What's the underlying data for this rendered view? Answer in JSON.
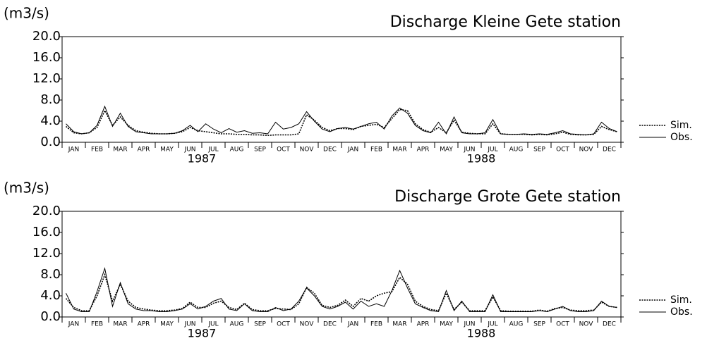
{
  "chart_data": [
    {
      "type": "line",
      "title": "Discharge Kleine Gete station",
      "ylabel": "(m3/s)",
      "categories": [
        null,
        "JAN",
        null,
        null,
        "FEB",
        null,
        null,
        "MAR",
        null,
        null,
        "APR",
        null,
        null,
        "MAY",
        null,
        null,
        "JUN",
        null,
        null,
        "JUL",
        null,
        null,
        "AUG",
        null,
        null,
        "SEP",
        null,
        null,
        "OCT",
        null,
        null,
        "NOV",
        null,
        null,
        "DEC",
        null,
        null,
        "JAN",
        null,
        null,
        "FEB",
        null,
        null,
        "MAR",
        null,
        null,
        "APR",
        null,
        null,
        "MAY",
        null,
        null,
        "JUN",
        null,
        null,
        "JUL",
        null,
        null,
        "AUG",
        null,
        null,
        "SEP",
        null,
        null,
        "OCT",
        null,
        null,
        "NOV",
        null,
        null,
        "DEC",
        null
      ],
      "years": [
        "1987",
        "1988"
      ],
      "ylim": [
        0,
        20
      ],
      "yticks": [
        {
          "value": 0,
          "label": "0.0"
        },
        {
          "value": 4,
          "label": "4.0"
        },
        {
          "value": 8,
          "label": "8.0"
        },
        {
          "value": 12,
          "label": "12.0"
        },
        {
          "value": 16,
          "label": "16.0"
        },
        {
          "value": 20,
          "label": "20.0"
        }
      ],
      "series": [
        {
          "name": "Sim.",
          "color": "#000000",
          "dash": "dotted",
          "values": [
            3.0,
            1.8,
            1.6,
            1.8,
            2.8,
            6.0,
            3.2,
            4.8,
            3.2,
            2.2,
            1.9,
            1.7,
            1.6,
            1.6,
            1.7,
            2.0,
            2.8,
            2.2,
            2.0,
            1.8,
            1.6,
            1.6,
            1.5,
            1.5,
            1.4,
            1.4,
            1.3,
            1.4,
            1.4,
            1.4,
            1.6,
            5.2,
            4.2,
            2.8,
            2.2,
            2.6,
            2.6,
            2.4,
            3.0,
            3.2,
            3.4,
            2.8,
            4.5,
            6.2,
            6.0,
            3.5,
            2.4,
            1.9,
            2.8,
            1.8,
            4.2,
            1.9,
            1.7,
            1.6,
            1.6,
            3.5,
            1.6,
            1.5,
            1.5,
            1.5,
            1.4,
            1.5,
            1.4,
            1.6,
            1.9,
            1.5,
            1.4,
            1.4,
            1.5,
            3.0,
            2.4,
            2.0
          ]
        },
        {
          "name": "Obs.",
          "color": "#000000",
          "dash": "solid",
          "values": [
            3.5,
            2.0,
            1.6,
            1.8,
            3.2,
            6.8,
            3.0,
            5.5,
            3.0,
            2.0,
            1.8,
            1.6,
            1.6,
            1.6,
            1.7,
            2.2,
            3.2,
            2.0,
            3.5,
            2.5,
            1.8,
            2.6,
            1.9,
            2.2,
            1.7,
            1.8,
            1.6,
            3.8,
            2.5,
            2.8,
            3.5,
            5.8,
            4.0,
            2.5,
            2.0,
            2.6,
            2.8,
            2.5,
            3.0,
            3.5,
            3.8,
            2.5,
            5.0,
            6.5,
            5.5,
            3.2,
            2.2,
            1.8,
            3.8,
            1.6,
            4.8,
            1.8,
            1.6,
            1.6,
            1.8,
            4.3,
            1.6,
            1.5,
            1.5,
            1.6,
            1.5,
            1.6,
            1.5,
            1.8,
            2.2,
            1.6,
            1.5,
            1.4,
            1.6,
            3.8,
            2.6,
            2.0
          ]
        }
      ]
    },
    {
      "type": "line",
      "title": "Discharge Grote Gete station",
      "ylabel": "(m3/s)",
      "categories": [
        null,
        "JAN",
        null,
        null,
        "FEB",
        null,
        null,
        "MAR",
        null,
        null,
        "APR",
        null,
        null,
        "MAY",
        null,
        null,
        "JUN",
        null,
        null,
        "JUL",
        null,
        null,
        "AUG",
        null,
        null,
        "SEP",
        null,
        null,
        "OCT",
        null,
        null,
        "NOV",
        null,
        null,
        "DEC",
        null,
        null,
        "JAN",
        null,
        null,
        "FEB",
        null,
        null,
        "MAR",
        null,
        null,
        "APR",
        null,
        null,
        "MAY",
        null,
        null,
        "JUN",
        null,
        null,
        "JUL",
        null,
        null,
        "AUG",
        null,
        null,
        "SEP",
        null,
        null,
        "OCT",
        null,
        null,
        "NOV",
        null,
        null,
        "DEC",
        null
      ],
      "years": [
        "1987",
        "1988"
      ],
      "ylim": [
        0,
        20
      ],
      "yticks": [
        {
          "value": 0,
          "label": "0.0"
        },
        {
          "value": 4,
          "label": "4.0"
        },
        {
          "value": 8,
          "label": "8.0"
        },
        {
          "value": 12,
          "label": "12.0"
        },
        {
          "value": 16,
          "label": "16.0"
        },
        {
          "value": 20,
          "label": "20.0"
        }
      ],
      "series": [
        {
          "name": "Sim.",
          "color": "#000000",
          "dash": "dotted",
          "values": [
            3.5,
            1.8,
            1.2,
            1.2,
            4.0,
            8.0,
            3.0,
            6.2,
            3.0,
            1.8,
            1.5,
            1.3,
            1.2,
            1.2,
            1.3,
            1.6,
            2.8,
            1.8,
            1.8,
            2.6,
            3.0,
            1.8,
            1.4,
            2.6,
            1.4,
            1.2,
            1.2,
            1.6,
            1.5,
            1.4,
            2.5,
            5.6,
            4.5,
            2.2,
            1.8,
            2.2,
            3.2,
            2.0,
            3.5,
            3.0,
            4.0,
            4.5,
            4.8,
            7.5,
            6.2,
            3.0,
            2.0,
            1.4,
            1.2,
            4.5,
            1.4,
            2.8,
            1.2,
            1.2,
            1.2,
            3.8,
            1.2,
            1.1,
            1.1,
            1.1,
            1.1,
            1.3,
            1.1,
            1.6,
            1.8,
            1.3,
            1.2,
            1.2,
            1.3,
            2.8,
            2.0,
            1.8
          ]
        },
        {
          "name": "Obs.",
          "color": "#000000",
          "dash": "solid",
          "values": [
            4.5,
            1.5,
            1.0,
            1.0,
            4.8,
            9.2,
            2.0,
            6.5,
            2.5,
            1.5,
            1.2,
            1.2,
            1.0,
            1.0,
            1.2,
            1.5,
            2.5,
            1.5,
            2.0,
            3.0,
            3.5,
            1.5,
            1.2,
            2.5,
            1.2,
            1.0,
            1.0,
            1.8,
            1.2,
            1.5,
            3.0,
            5.5,
            4.0,
            2.0,
            1.5,
            2.0,
            2.8,
            1.5,
            3.0,
            2.0,
            2.5,
            2.0,
            5.0,
            8.8,
            5.5,
            2.5,
            1.8,
            1.2,
            1.0,
            5.0,
            1.2,
            3.0,
            1.0,
            1.0,
            1.0,
            4.2,
            1.0,
            1.0,
            1.0,
            1.0,
            1.0,
            1.2,
            1.0,
            1.5,
            2.0,
            1.2,
            1.0,
            1.0,
            1.2,
            3.0,
            2.0,
            1.8
          ]
        }
      ]
    }
  ]
}
